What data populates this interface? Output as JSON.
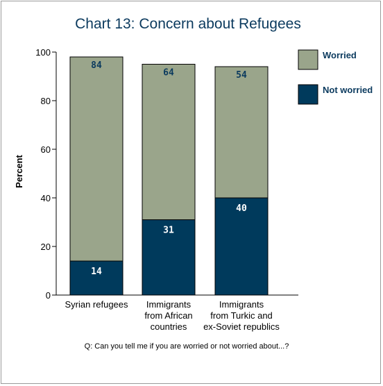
{
  "chart_data": {
    "type": "bar",
    "stacked": true,
    "title": "Chart 13: Concern about Refugees",
    "ylabel": "Percent",
    "xlabel": "",
    "ylim": [
      0,
      100
    ],
    "yticks": [
      0,
      20,
      40,
      60,
      80,
      100
    ],
    "categories": [
      [
        "Syrian refugees"
      ],
      [
        "Immigrants",
        "from African",
        "countries"
      ],
      [
        "Immigrants",
        "from Turkic and",
        "ex-Soviet republics"
      ]
    ],
    "series": [
      {
        "name": "Not worried",
        "values": [
          14,
          31,
          40
        ],
        "color": "#003a5c",
        "label_color": "#ffffff"
      },
      {
        "name": "Worried",
        "values": [
          84,
          64,
          54
        ],
        "color": "#9aa58b",
        "label_color": "#0b3a5e"
      }
    ],
    "legend_position": "right",
    "legend_order": [
      "Worried",
      "Not worried"
    ],
    "grid": false,
    "footnote": "Q: Can you tell me if you are worried or not worried about...?"
  }
}
